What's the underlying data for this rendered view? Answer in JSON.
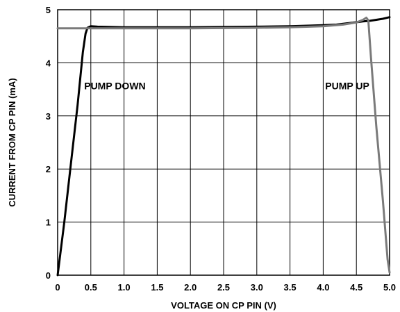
{
  "chart_data": {
    "type": "line",
    "xlabel": "VOLTAGE ON CP PIN (V)",
    "ylabel": "CURRENT FROM CP PIN (mA)",
    "xlim": [
      0,
      5
    ],
    "ylim": [
      0,
      5
    ],
    "x_ticks": [
      "0",
      "0.5",
      "1.0",
      "1.5",
      "2.0",
      "2.5",
      "3.0",
      "3.5",
      "4.0",
      "4.5",
      "5.0"
    ],
    "y_ticks": [
      "0",
      "1",
      "2",
      "3",
      "4",
      "5"
    ],
    "grid": true,
    "annotations": [
      {
        "text": "PUMP DOWN",
        "x": 0.4,
        "y": 3.5
      },
      {
        "text": "PUMP UP",
        "x": 4.03,
        "y": 3.5
      }
    ],
    "series": [
      {
        "color": "#000000",
        "x": [
          0,
          0.1,
          0.2,
          0.3,
          0.38,
          0.42,
          0.45,
          0.5,
          0.6,
          1.0,
          2.0,
          3.0,
          3.5,
          3.8,
          4.0,
          4.2,
          4.4,
          4.6,
          4.7,
          4.8,
          4.9,
          5.0
        ],
        "y": [
          0,
          1.0,
          2.1,
          3.2,
          4.2,
          4.55,
          4.66,
          4.69,
          4.68,
          4.67,
          4.67,
          4.68,
          4.69,
          4.7,
          4.71,
          4.72,
          4.75,
          4.78,
          4.79,
          4.81,
          4.83,
          4.86
        ]
      },
      {
        "color": "#7a7a7a",
        "x": [
          0,
          0.5,
          1.0,
          2.0,
          3.0,
          3.5,
          4.0,
          4.3,
          4.5,
          4.6,
          4.65,
          4.68,
          4.72,
          4.8,
          4.9,
          4.97,
          5.0
        ],
        "y": [
          4.65,
          4.65,
          4.65,
          4.65,
          4.66,
          4.67,
          4.69,
          4.72,
          4.76,
          4.81,
          4.85,
          4.8,
          4.1,
          2.8,
          1.4,
          0.3,
          0.05
        ]
      }
    ]
  }
}
